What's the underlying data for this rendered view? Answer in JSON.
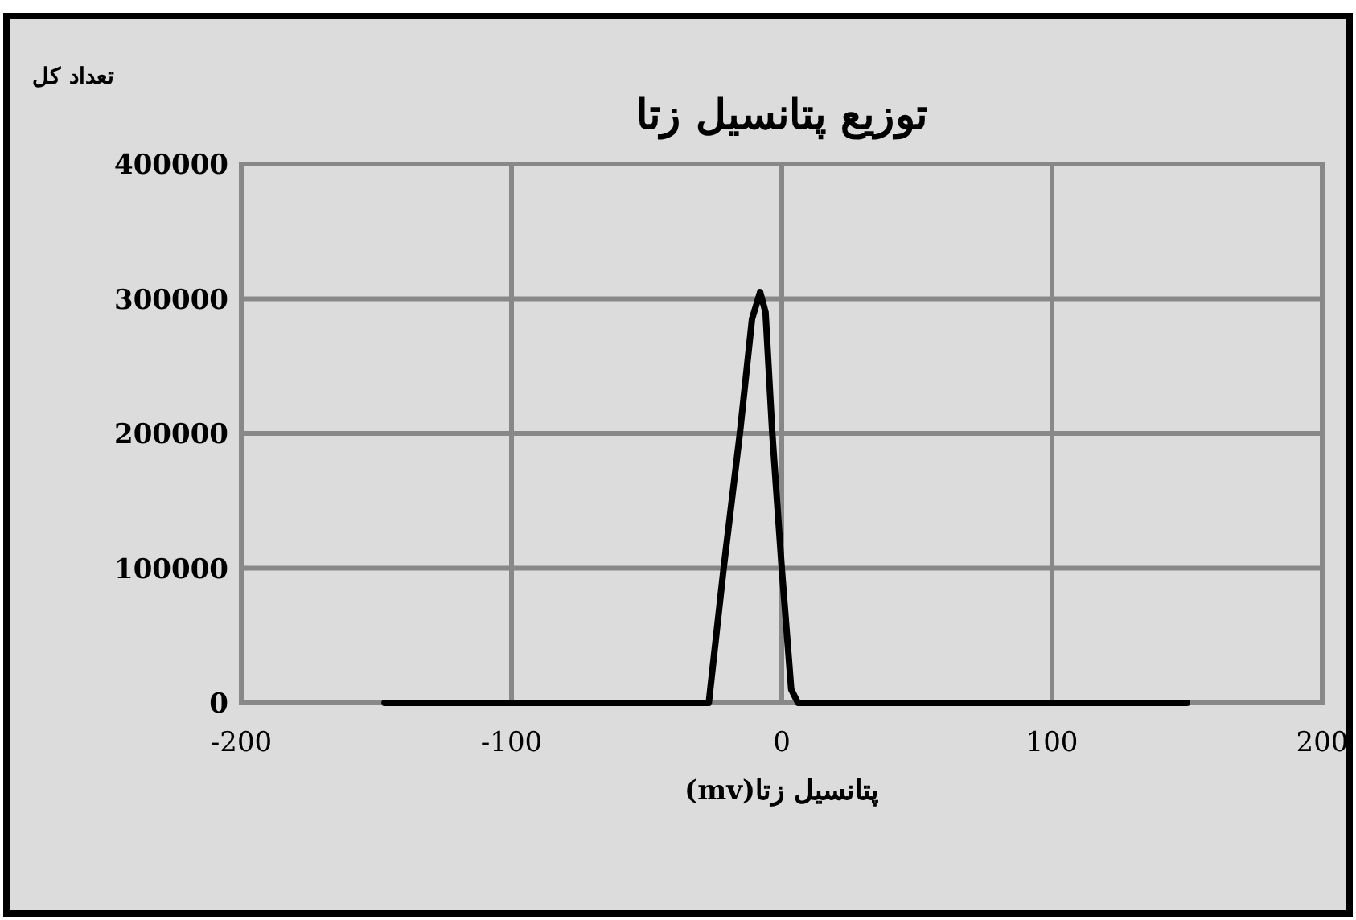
{
  "chart_data": {
    "type": "line",
    "title": "توزیع پتانسیل زتا",
    "xlabel": "پتانسیل زتا(mv)",
    "ylabel": "تعداد کل",
    "x": [
      -147,
      -27,
      -21.5,
      -15.5,
      -11,
      -8,
      -6,
      -3.5,
      0,
      3.5,
      6,
      150
    ],
    "series": [
      {
        "color": "#000000",
        "values": [
          0,
          0,
          100000,
          200000,
          285000,
          305000,
          290000,
          200000,
          100000,
          10000,
          0,
          0
        ]
      }
    ],
    "xlim": [
      -200,
      200
    ],
    "xticks": [
      -200,
      -100,
      0,
      100,
      200
    ],
    "ylim": [
      0,
      400000
    ],
    "yticks": [
      0,
      100000,
      200000,
      300000,
      400000
    ],
    "grid": true,
    "marker": "none",
    "line_style": "solid"
  }
}
